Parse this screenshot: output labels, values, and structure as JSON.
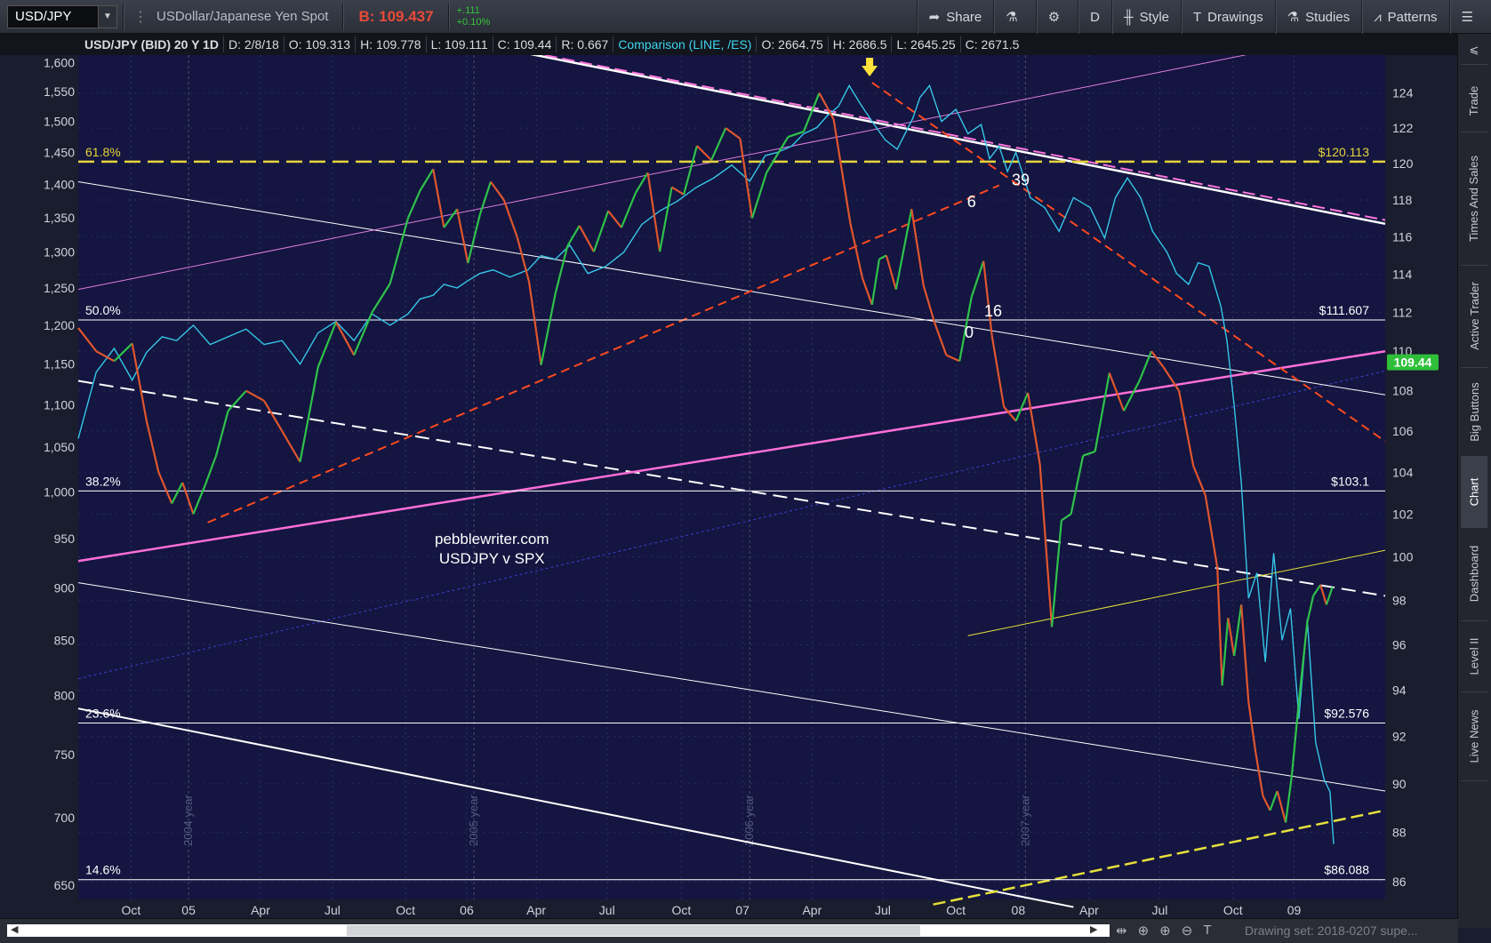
{
  "toolbar": {
    "symbol": "USD/JPY",
    "description": "USDollar/Japanese Yen Spot",
    "bid": "B: 109.437",
    "change": "+.111",
    "change_pct": "+0.10%",
    "share": "Share",
    "aggregation": "D",
    "style": "Style",
    "drawings": "Drawings",
    "studies": "Studies",
    "patterns": "Patterns"
  },
  "infobar": {
    "title": "USD/JPY (BID) 20 Y 1D",
    "date": "D: 2/8/18",
    "open": "O: 109.313",
    "high": "H: 109.778",
    "low": "L: 109.111",
    "close": "C: 109.44",
    "range": "R: 0.667",
    "comparison": "Comparison (LINE, /ES)",
    "c_open": "O: 2664.75",
    "c_high": "H: 2686.5",
    "c_low": "L: 2645.25",
    "c_close": "C: 2671.5"
  },
  "side_tabs": [
    "Trade",
    "Times And Sales",
    "Active Trader",
    "Big Buttons",
    "Chart",
    "Dashboard",
    "Level II",
    "Live News"
  ],
  "scrollbar": {
    "drawing_set": "Drawing set: 2018-0207 supe..."
  },
  "chart_data": {
    "type": "line",
    "title": "",
    "x_ticks": [
      "Oct",
      "05",
      "Apr",
      "Jul",
      "Oct",
      "06",
      "Apr",
      "Jul",
      "Oct",
      "07",
      "Apr",
      "Jul",
      "Oct",
      "08",
      "Apr",
      "Jul",
      "Oct",
      "09"
    ],
    "x_tick_pos": [
      9.4,
      14.2,
      20.2,
      26.2,
      32.3,
      37.4,
      43.2,
      49.1,
      55.3,
      60.4,
      66.2,
      72.1,
      78.2,
      83.4,
      89.3,
      95.2,
      101.3,
      106.4
    ],
    "year_markers": [
      {
        "label": "2004 year",
        "x": 14.2
      },
      {
        "label": "2005 year",
        "x": 38.0
      },
      {
        "label": "2006 year",
        "x": 61.0
      },
      {
        "label": "2007 year",
        "x": 84.0
      }
    ],
    "xlim": [
      5,
      114
    ],
    "right_axis": {
      "label": "USD/JPY",
      "ticks": [
        86,
        88,
        90,
        92,
        94,
        96,
        98,
        100,
        102,
        104,
        106,
        108,
        110,
        112,
        114,
        116,
        118,
        120,
        122,
        124
      ],
      "ylim": [
        85.3,
        126.2
      ],
      "scale": "log"
    },
    "left_axis": {
      "label": "/ES",
      "ticks": [
        650,
        700,
        750,
        800,
        850,
        900,
        950,
        1000,
        1050,
        1100,
        1150,
        1200,
        1250,
        1300,
        1350,
        1400,
        1450,
        1500,
        1550,
        1600
      ],
      "ticklabels": [
        "650",
        "700",
        "750",
        "800",
        "850",
        "900",
        "950",
        "1,000",
        "1,050",
        "1,100",
        "1,150",
        "1,200",
        "1,250",
        "1,300",
        "1,350",
        "1,400",
        "1,450",
        "1,500",
        "1,550",
        "1,600"
      ],
      "ylim": [
        640,
        1613
      ],
      "scale": "log"
    },
    "series": [
      {
        "name": "USD/JPY",
        "color_up": "#2fc24a",
        "color_down": "#e0562e",
        "x": [
          5,
          6.5,
          8,
          9.5,
          10.7,
          11.7,
          12.8,
          13.7,
          14.6,
          15.6,
          16.5,
          17.5,
          19,
          20.5,
          22,
          23.5,
          25,
          26.5,
          28,
          29.5,
          31,
          32.5,
          33.5,
          34.6,
          35.5,
          36.6,
          37.5,
          38.5,
          39.4,
          40.5,
          41.6,
          42.6,
          43.6,
          44.8,
          45.8,
          46.8,
          48,
          49.2,
          50.3,
          51.5,
          52.5,
          53.5,
          54.5,
          55.5,
          56.6,
          57.8,
          59,
          60.2,
          61.2,
          62.4,
          63.3,
          64.2,
          65.5,
          66.8,
          68,
          69.4,
          70.4,
          71.2,
          71.8,
          72.4,
          73.2,
          74.5,
          75.5,
          76.4,
          77.4,
          78.5,
          79.5,
          80.5,
          81.2,
          82.2,
          83.2,
          84.2,
          85.2,
          86.2,
          87,
          87.8,
          88.8,
          89.8,
          91,
          92.2,
          93.5,
          94.5,
          95.5,
          96.8,
          98,
          99,
          100,
          100.4,
          100.9,
          101.4,
          102,
          102.6,
          103.2,
          103.8,
          104.4,
          105,
          105.7,
          106.2,
          106.8,
          107.5,
          108,
          108.6,
          109.1,
          109.6
        ],
        "y": [
          111.2,
          110,
          109.5,
          110.4,
          106.5,
          104,
          102.5,
          103.5,
          102,
          103.4,
          104.8,
          107,
          108,
          107.5,
          106,
          104.5,
          109.2,
          111.5,
          109.8,
          112,
          113.5,
          117,
          118.5,
          119.7,
          116.5,
          117.5,
          114.6,
          117.2,
          119,
          118,
          116,
          113.6,
          109.3,
          113,
          115.5,
          116.6,
          115.2,
          117.4,
          116.5,
          118.4,
          119.5,
          115.2,
          118.7,
          118.3,
          121,
          120.2,
          122,
          121.4,
          117,
          119.5,
          120.5,
          121.5,
          121.8,
          124,
          122.5,
          116.7,
          113.8,
          112.4,
          114.8,
          115,
          113.2,
          117.5,
          113.4,
          111.5,
          109.8,
          109.5,
          112.8,
          114.7,
          110.8,
          107.2,
          106.5,
          107.9,
          104.4,
          96.8,
          101.7,
          102,
          104.8,
          105,
          108.9,
          107,
          108.5,
          110,
          109.2,
          108,
          104.3,
          102.9,
          99.5,
          94.2,
          97.2,
          95.5,
          97.8,
          93.5,
          91.3,
          89.5,
          88.9,
          89.7,
          88.4,
          90.3,
          93.5,
          97,
          98.2,
          98.7,
          97.8,
          98.6
        ]
      },
      {
        "name": "/ES",
        "color": "#35c6e8",
        "x": [
          5,
          6.5,
          8,
          9.5,
          10.7,
          12,
          13.2,
          14.6,
          16,
          17.5,
          19,
          20.5,
          22,
          23.5,
          25,
          26.5,
          28,
          29.5,
          31,
          32.5,
          33.5,
          34.6,
          35.5,
          36.6,
          37.5,
          38.5,
          39.6,
          41,
          42.5,
          43.6,
          44.8,
          46,
          47.5,
          49,
          50.5,
          52,
          53.5,
          55,
          56.5,
          58,
          59.5,
          61,
          62.3,
          63.3,
          64.5,
          65.5,
          66.6,
          67.5,
          68.4,
          69.3,
          70.2,
          71.2,
          72.3,
          73.3,
          74.6,
          75.2,
          76,
          77,
          78.2,
          79.2,
          80.3,
          81,
          81.8,
          82.5,
          83.2,
          84.4,
          85.6,
          86.8,
          88,
          89.4,
          90.6,
          91.5,
          92.5,
          93.6,
          94.6,
          95.8,
          96.6,
          97.6,
          98.4,
          99.3,
          100.3,
          100.8,
          101.4,
          102,
          102.6,
          103.3,
          104,
          104.7,
          105.4,
          106.1,
          106.8,
          107.5,
          108.2,
          108.9,
          109.4,
          109.7
        ],
        "y": [
          1060,
          1140,
          1170,
          1130,
          1165,
          1185,
          1180,
          1200,
          1175,
          1185,
          1195,
          1175,
          1180,
          1150,
          1190,
          1205,
          1180,
          1215,
          1200,
          1215,
          1235,
          1240,
          1255,
          1250,
          1260,
          1270,
          1275,
          1265,
          1275,
          1295,
          1290,
          1310,
          1270,
          1280,
          1300,
          1340,
          1360,
          1375,
          1395,
          1410,
          1430,
          1405,
          1445,
          1450,
          1460,
          1480,
          1490,
          1510,
          1525,
          1560,
          1530,
          1500,
          1470,
          1455,
          1505,
          1540,
          1560,
          1500,
          1520,
          1480,
          1495,
          1440,
          1460,
          1420,
          1450,
          1380,
          1365,
          1330,
          1380,
          1365,
          1320,
          1380,
          1410,
          1380,
          1330,
          1300,
          1270,
          1255,
          1285,
          1280,
          1225,
          1180,
          1100,
          1010,
          890,
          915,
          830,
          935,
          850,
          880,
          780,
          870,
          760,
          730,
          720,
          680
        ]
      }
    ],
    "fib_levels": [
      {
        "pct": "61.8%",
        "price": 120.113,
        "label": "$120.113",
        "color": "#e6d43a",
        "dashed": true
      },
      {
        "pct": "50.0%",
        "price": 111.607,
        "label": "$111.607",
        "color": "#ffffff",
        "dashed": false
      },
      {
        "pct": "38.2%",
        "price": 103.1,
        "label": "$103.1",
        "color": "#ffffff",
        "dashed": false
      },
      {
        "pct": "23.6%",
        "price": 92.576,
        "label": "$92.576",
        "color": "#ffffff",
        "dashed": false
      },
      {
        "pct": "14.6%",
        "price": 86.088,
        "label": "$86.088",
        "color": "#ffffff",
        "dashed": false
      }
    ],
    "trendlines": [
      {
        "from": [
          41,
          126.5
        ],
        "to": [
          114,
          116.7
        ],
        "color": "#ffffff",
        "width": 2.5,
        "dash": ""
      },
      {
        "from": [
          41,
          126.6
        ],
        "to": [
          114,
          116.9
        ],
        "color": "#ff77dd",
        "width": 2,
        "dash": "14,6"
      },
      {
        "from": [
          5,
          94.5
        ],
        "to": [
          114,
          109.0
        ],
        "color": "#3a3fd0",
        "width": 1,
        "dash": "3,3"
      },
      {
        "from": [
          5,
          119
        ],
        "to": [
          114,
          107.8
        ],
        "color": "#ffffff",
        "width": 1,
        "dash": ""
      },
      {
        "from": [
          5,
          108.5
        ],
        "to": [
          114,
          98.2
        ],
        "color": "#ffffff",
        "width": 2,
        "dash": "16,8"
      },
      {
        "from": [
          5,
          98.8
        ],
        "to": [
          114,
          89.7
        ],
        "color": "#ffffff",
        "width": 1,
        "dash": ""
      },
      {
        "from": [
          5,
          93.2
        ],
        "to": [
          88,
          85
        ],
        "color": "#ffffff",
        "width": 2,
        "dash": ""
      },
      {
        "from": [
          5,
          113.2
        ],
        "to": [
          104.4,
          126.5
        ],
        "color": "#e07fe0",
        "width": 1,
        "dash": ""
      },
      {
        "from": [
          5,
          99.8
        ],
        "to": [
          114,
          110.0
        ],
        "color": "#ff6fd8",
        "width": 2.5,
        "dash": ""
      },
      {
        "from": [
          15.8,
          101.6
        ],
        "to": [
          81.8,
          118.8
        ],
        "color": "#ff4a1f",
        "width": 2,
        "dash": "10,6"
      },
      {
        "from": [
          71.2,
          124.6
        ],
        "to": [
          114,
          105.5
        ],
        "color": "#ff4a1f",
        "width": 2,
        "dash": "10,6"
      },
      {
        "from": [
          79.2,
          96.4
        ],
        "to": [
          114,
          100.3
        ],
        "color": "#e5e03a",
        "width": 1,
        "dash": ""
      },
      {
        "from": [
          76.3,
          85.1
        ],
        "to": [
          114,
          88.9
        ],
        "color": "#e5e03a",
        "width": 2.5,
        "dash": "14,6"
      }
    ],
    "annotations": [
      {
        "text": "6",
        "x": 79.5,
        "y": 117.6
      },
      {
        "text": "39",
        "x": 83.6,
        "y": 118.8
      },
      {
        "text": "16",
        "x": 81.3,
        "y": 111.8
      },
      {
        "text": "0",
        "x": 79.3,
        "y": 110.7
      }
    ],
    "watermark": [
      "pebblewriter.com",
      "USDJPY v SPX"
    ],
    "last_price_label": "109.44",
    "grid": true
  }
}
